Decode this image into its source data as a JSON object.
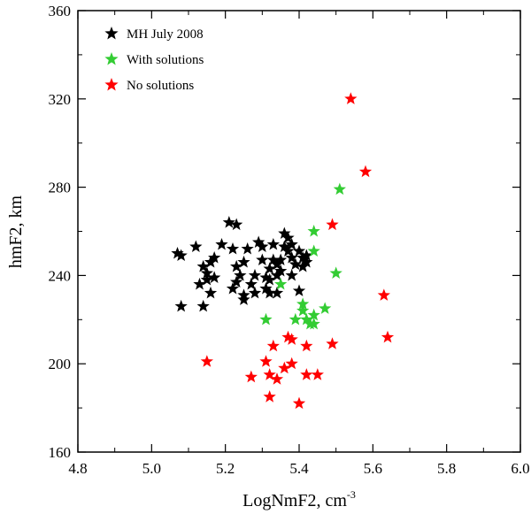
{
  "chart_data": {
    "type": "scatter",
    "title": "",
    "xlabel": "LogNmF2, cm",
    "xlabel_sup": "-3",
    "ylabel": "hmF2, km",
    "xlim": [
      4.8,
      6.0
    ],
    "ylim": [
      160,
      360
    ],
    "xticks": [
      4.8,
      5.0,
      5.2,
      5.4,
      5.6,
      5.8,
      6.0
    ],
    "yticks": [
      160,
      200,
      240,
      280,
      320,
      360
    ],
    "xtick_labels": [
      "4.8",
      "5.0",
      "5.2",
      "5.4",
      "5.6",
      "5.8",
      "6.0"
    ],
    "ytick_labels": [
      "160",
      "200",
      "240",
      "280",
      "320",
      "360"
    ],
    "grid": false,
    "legend_position": "top-left",
    "series": [
      {
        "name": "MH July 2008",
        "color": "#000000",
        "marker": "star",
        "points": [
          [
            5.07,
            250
          ],
          [
            5.08,
            249
          ],
          [
            5.08,
            226
          ],
          [
            5.12,
            253
          ],
          [
            5.14,
            226
          ],
          [
            5.14,
            244
          ],
          [
            5.15,
            241
          ],
          [
            5.13,
            236
          ],
          [
            5.15,
            238
          ],
          [
            5.16,
            232
          ],
          [
            5.16,
            246
          ],
          [
            5.17,
            248
          ],
          [
            5.17,
            239
          ],
          [
            5.19,
            254
          ],
          [
            5.21,
            264
          ],
          [
            5.23,
            263
          ],
          [
            5.22,
            252
          ],
          [
            5.23,
            244
          ],
          [
            5.22,
            234
          ],
          [
            5.23,
            237
          ],
          [
            5.24,
            240
          ],
          [
            5.25,
            229
          ],
          [
            5.25,
            231
          ],
          [
            5.25,
            246
          ],
          [
            5.26,
            252
          ],
          [
            5.27,
            236
          ],
          [
            5.28,
            240
          ],
          [
            5.28,
            232
          ],
          [
            5.29,
            255
          ],
          [
            5.3,
            253
          ],
          [
            5.3,
            247
          ],
          [
            5.31,
            239
          ],
          [
            5.31,
            234
          ],
          [
            5.32,
            232
          ],
          [
            5.32,
            238
          ],
          [
            5.32,
            243
          ],
          [
            5.33,
            254
          ],
          [
            5.33,
            247
          ],
          [
            5.34,
            245
          ],
          [
            5.34,
            240
          ],
          [
            5.34,
            232
          ],
          [
            5.35,
            247
          ],
          [
            5.35,
            242
          ],
          [
            5.36,
            259
          ],
          [
            5.37,
            257
          ],
          [
            5.36,
            253
          ],
          [
            5.37,
            251
          ],
          [
            5.38,
            254
          ],
          [
            5.38,
            248
          ],
          [
            5.38,
            240
          ],
          [
            5.39,
            245
          ],
          [
            5.4,
            251
          ],
          [
            5.41,
            248
          ],
          [
            5.41,
            244
          ],
          [
            5.4,
            233
          ],
          [
            5.42,
            249
          ],
          [
            5.42,
            246
          ]
        ]
      },
      {
        "name": "With solutions",
        "color": "#33cc33",
        "marker": "star",
        "points": [
          [
            5.51,
            279
          ],
          [
            5.44,
            260
          ],
          [
            5.44,
            251
          ],
          [
            5.5,
            241
          ],
          [
            5.35,
            236
          ],
          [
            5.31,
            220
          ],
          [
            5.39,
            220
          ],
          [
            5.41,
            227
          ],
          [
            5.41,
            224
          ],
          [
            5.42,
            220
          ],
          [
            5.43,
            218
          ],
          [
            5.44,
            222
          ],
          [
            5.44,
            218
          ],
          [
            5.47,
            225
          ]
        ]
      },
      {
        "name": "No solutions",
        "color": "#ff0000",
        "marker": "star",
        "points": [
          [
            5.54,
            320
          ],
          [
            5.58,
            287
          ],
          [
            5.49,
            263
          ],
          [
            5.63,
            231
          ],
          [
            5.64,
            212
          ],
          [
            5.49,
            209
          ],
          [
            5.42,
            208
          ],
          [
            5.37,
            212
          ],
          [
            5.38,
            211
          ],
          [
            5.33,
            208
          ],
          [
            5.15,
            201
          ],
          [
            5.31,
            201
          ],
          [
            5.27,
            194
          ],
          [
            5.32,
            195
          ],
          [
            5.34,
            193
          ],
          [
            5.36,
            198
          ],
          [
            5.38,
            200
          ],
          [
            5.42,
            195
          ],
          [
            5.45,
            195
          ],
          [
            5.32,
            185
          ],
          [
            5.4,
            182
          ]
        ]
      }
    ]
  }
}
